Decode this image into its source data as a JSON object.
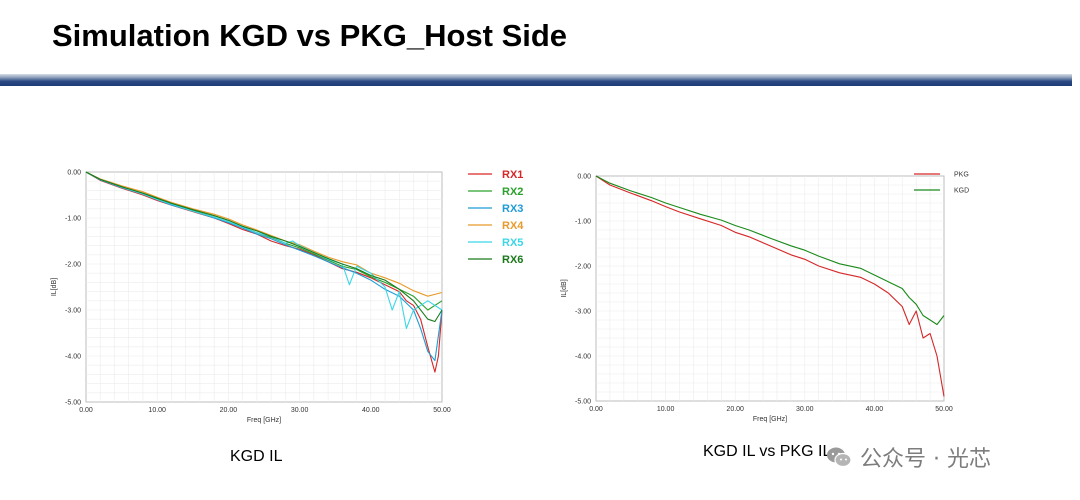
{
  "slide": {
    "title": "Simulation KGD vs PKG_Host Side"
  },
  "captions": {
    "left": "KGD IL",
    "right": "KGD IL vs PKG IL"
  },
  "watermark": {
    "text": "公众号 · 光芯"
  },
  "chart_data": [
    {
      "type": "line",
      "title": "",
      "xlabel": "Freq [GHz]",
      "ylabel": "IL[dB]",
      "xlim": [
        0,
        50
      ],
      "ylim": [
        -5,
        0
      ],
      "xticks": [
        "0.00",
        "10.00",
        "20.00",
        "30.00",
        "40.00",
        "50.00"
      ],
      "yticks": [
        "0.00",
        "-1.00",
        "-2.00",
        "-3.00",
        "-4.00",
        "-5.00"
      ],
      "grid": true,
      "legend_position": "right-top",
      "series": [
        {
          "name": "RX1",
          "color": "#d62728",
          "x": [
            0,
            2,
            5,
            8,
            10,
            12,
            15,
            18,
            20,
            22,
            24,
            26,
            28,
            30,
            32,
            34,
            36,
            38,
            40,
            42,
            44,
            45,
            46,
            47,
            48,
            49,
            49.5,
            50
          ],
          "y": [
            0,
            -0.18,
            -0.35,
            -0.5,
            -0.62,
            -0.72,
            -0.86,
            -1.0,
            -1.12,
            -1.25,
            -1.35,
            -1.5,
            -1.6,
            -1.68,
            -1.8,
            -1.95,
            -2.1,
            -2.18,
            -2.3,
            -2.45,
            -2.6,
            -2.8,
            -2.9,
            -3.2,
            -3.8,
            -4.35,
            -4.0,
            -3.0
          ]
        },
        {
          "name": "RX2",
          "color": "#2ca02c",
          "x": [
            0,
            2,
            5,
            8,
            10,
            12,
            15,
            18,
            20,
            22,
            24,
            26,
            28,
            30,
            32,
            34,
            36,
            38,
            40,
            42,
            44,
            46,
            48,
            50
          ],
          "y": [
            0,
            -0.17,
            -0.33,
            -0.47,
            -0.58,
            -0.7,
            -0.84,
            -0.98,
            -1.1,
            -1.2,
            -1.32,
            -1.42,
            -1.55,
            -1.65,
            -1.78,
            -1.92,
            -2.05,
            -2.12,
            -2.28,
            -2.4,
            -2.55,
            -2.7,
            -3.0,
            -2.8
          ]
        },
        {
          "name": "RX3",
          "color": "#1f9bd6",
          "x": [
            0,
            2,
            5,
            8,
            10,
            12,
            15,
            18,
            20,
            22,
            24,
            26,
            28,
            30,
            32,
            34,
            36,
            38,
            40,
            42,
            44,
            45,
            46,
            47,
            48,
            49,
            50
          ],
          "y": [
            0,
            -0.17,
            -0.34,
            -0.48,
            -0.6,
            -0.72,
            -0.85,
            -1.0,
            -1.1,
            -1.22,
            -1.35,
            -1.45,
            -1.58,
            -1.7,
            -1.82,
            -1.95,
            -2.08,
            -2.2,
            -2.35,
            -2.55,
            -2.7,
            -2.85,
            -3.0,
            -3.4,
            -3.9,
            -4.1,
            -3.0
          ]
        },
        {
          "name": "RX4",
          "color": "#e89b2b",
          "x": [
            0,
            2,
            5,
            8,
            10,
            12,
            15,
            18,
            20,
            22,
            24,
            26,
            28,
            30,
            32,
            34,
            36,
            38,
            40,
            42,
            44,
            46,
            48,
            50
          ],
          "y": [
            0,
            -0.15,
            -0.3,
            -0.43,
            -0.55,
            -0.66,
            -0.8,
            -0.92,
            -1.02,
            -1.15,
            -1.26,
            -1.38,
            -1.5,
            -1.58,
            -1.72,
            -1.85,
            -1.95,
            -2.02,
            -2.2,
            -2.3,
            -2.42,
            -2.58,
            -2.7,
            -2.62
          ]
        },
        {
          "name": "RX5",
          "color": "#3ad6e6",
          "x": [
            0,
            2,
            5,
            8,
            10,
            12,
            15,
            18,
            20,
            22,
            24,
            26,
            28,
            29,
            30,
            32,
            34,
            36,
            37,
            38,
            40,
            42,
            43,
            44,
            45,
            46,
            48,
            50
          ],
          "y": [
            0,
            -0.16,
            -0.33,
            -0.48,
            -0.6,
            -0.7,
            -0.85,
            -0.98,
            -1.08,
            -1.2,
            -1.32,
            -1.4,
            -1.55,
            -1.5,
            -1.6,
            -1.75,
            -1.9,
            -2.0,
            -2.45,
            -2.05,
            -2.2,
            -2.5,
            -3.0,
            -2.6,
            -3.4,
            -3.0,
            -2.8,
            -3.0
          ]
        },
        {
          "name": "RX6",
          "color": "#1a7a1a",
          "x": [
            0,
            2,
            5,
            8,
            10,
            12,
            15,
            18,
            20,
            22,
            24,
            26,
            28,
            30,
            32,
            34,
            36,
            38,
            40,
            42,
            44,
            46,
            48,
            49,
            50
          ],
          "y": [
            0,
            -0.16,
            -0.32,
            -0.46,
            -0.57,
            -0.68,
            -0.82,
            -0.95,
            -1.05,
            -1.18,
            -1.28,
            -1.4,
            -1.5,
            -1.62,
            -1.75,
            -1.88,
            -2.0,
            -2.1,
            -2.25,
            -2.35,
            -2.55,
            -2.8,
            -3.2,
            -3.25,
            -3.0
          ]
        }
      ]
    },
    {
      "type": "line",
      "title": "",
      "xlabel": "Freq [GHz]",
      "ylabel": "IL[dB]",
      "xlim": [
        0,
        50
      ],
      "ylim": [
        -5,
        0
      ],
      "xticks": [
        "0.00",
        "10.00",
        "20.00",
        "30.00",
        "40.00",
        "50.00"
      ],
      "yticks": [
        "0.00",
        "-1.00",
        "-2.00",
        "-3.00",
        "-4.00",
        "-5.00"
      ],
      "grid": true,
      "legend_position": "right-top",
      "series": [
        {
          "name": "PKG",
          "color": "#d62728",
          "x": [
            0,
            2,
            5,
            8,
            10,
            12,
            15,
            18,
            20,
            22,
            25,
            28,
            30,
            32,
            35,
            38,
            40,
            42,
            44,
            45,
            46,
            47,
            48,
            49,
            50
          ],
          "y": [
            0,
            -0.2,
            -0.38,
            -0.55,
            -0.68,
            -0.8,
            -0.95,
            -1.1,
            -1.25,
            -1.35,
            -1.55,
            -1.75,
            -1.85,
            -2.0,
            -2.15,
            -2.25,
            -2.4,
            -2.6,
            -2.9,
            -3.3,
            -3.0,
            -3.6,
            -3.5,
            -4.0,
            -4.9
          ]
        },
        {
          "name": "KGD",
          "color": "#1a8a1a",
          "x": [
            0,
            2,
            5,
            8,
            10,
            12,
            15,
            18,
            20,
            22,
            25,
            28,
            30,
            32,
            35,
            38,
            40,
            42,
            44,
            45,
            46,
            47,
            48,
            49,
            50
          ],
          "y": [
            0,
            -0.16,
            -0.33,
            -0.48,
            -0.6,
            -0.7,
            -0.85,
            -0.98,
            -1.1,
            -1.2,
            -1.38,
            -1.55,
            -1.65,
            -1.78,
            -1.95,
            -2.05,
            -2.2,
            -2.35,
            -2.5,
            -2.7,
            -2.85,
            -3.1,
            -3.2,
            -3.3,
            -3.1
          ]
        }
      ]
    }
  ]
}
